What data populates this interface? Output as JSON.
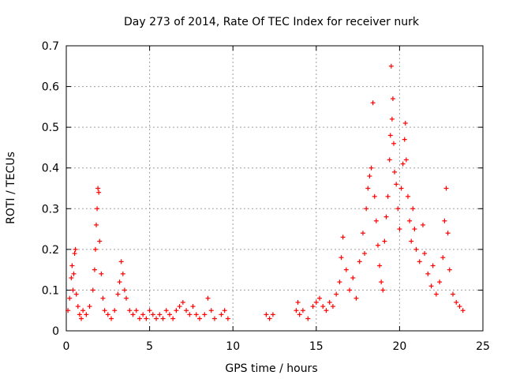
{
  "chart_data": {
    "type": "scatter",
    "title": "Day 273 of 2014, Rate Of TEC Index for receiver nurk",
    "xlabel": "GPS time / hours",
    "ylabel": "ROTI / TECUs",
    "xlim": [
      0,
      25
    ],
    "ylim": [
      0,
      0.7
    ],
    "x_ticks": [
      0,
      5,
      10,
      15,
      20,
      25
    ],
    "y_ticks": [
      0,
      0.1,
      0.2,
      0.3,
      0.4,
      0.5,
      0.6,
      0.7
    ],
    "x_tick_labels": [
      "0",
      "5",
      "10",
      "15",
      "20",
      "25"
    ],
    "y_tick_labels": [
      "0",
      "0.1",
      "0.2",
      "0.3",
      "0.4",
      "0.5",
      "0.6",
      "0.7"
    ],
    "grid": true,
    "marker": "+",
    "color": "#ff0000",
    "series": [
      {
        "points": [
          [
            0.1,
            0.05
          ],
          [
            0.2,
            0.08
          ],
          [
            0.3,
            0.13
          ],
          [
            0.35,
            0.16
          ],
          [
            0.4,
            0.1
          ],
          [
            0.45,
            0.14
          ],
          [
            0.5,
            0.19
          ],
          [
            0.55,
            0.2
          ],
          [
            0.6,
            0.09
          ],
          [
            0.7,
            0.06
          ],
          [
            0.8,
            0.04
          ],
          [
            0.9,
            0.03
          ],
          [
            1.0,
            0.05
          ],
          [
            1.2,
            0.04
          ],
          [
            1.4,
            0.06
          ],
          [
            1.6,
            0.1
          ],
          [
            1.7,
            0.15
          ],
          [
            1.75,
            0.2
          ],
          [
            1.8,
            0.26
          ],
          [
            1.85,
            0.3
          ],
          [
            1.9,
            0.35
          ],
          [
            1.95,
            0.34
          ],
          [
            2.0,
            0.22
          ],
          [
            2.1,
            0.14
          ],
          [
            2.2,
            0.08
          ],
          [
            2.3,
            0.05
          ],
          [
            2.5,
            0.04
          ],
          [
            2.7,
            0.03
          ],
          [
            2.9,
            0.05
          ],
          [
            3.1,
            0.09
          ],
          [
            3.2,
            0.12
          ],
          [
            3.3,
            0.17
          ],
          [
            3.4,
            0.14
          ],
          [
            3.5,
            0.1
          ],
          [
            3.6,
            0.08
          ],
          [
            3.8,
            0.05
          ],
          [
            4.0,
            0.04
          ],
          [
            4.2,
            0.05
          ],
          [
            4.4,
            0.03
          ],
          [
            4.6,
            0.04
          ],
          [
            4.8,
            0.03
          ],
          [
            5.0,
            0.05
          ],
          [
            5.2,
            0.04
          ],
          [
            5.4,
            0.03
          ],
          [
            5.6,
            0.04
          ],
          [
            5.8,
            0.03
          ],
          [
            6.0,
            0.05
          ],
          [
            6.2,
            0.04
          ],
          [
            6.4,
            0.03
          ],
          [
            6.6,
            0.05
          ],
          [
            6.8,
            0.06
          ],
          [
            7.0,
            0.07
          ],
          [
            7.2,
            0.05
          ],
          [
            7.4,
            0.04
          ],
          [
            7.6,
            0.06
          ],
          [
            7.8,
            0.04
          ],
          [
            8.0,
            0.03
          ],
          [
            8.3,
            0.04
          ],
          [
            8.5,
            0.08
          ],
          [
            8.7,
            0.05
          ],
          [
            8.9,
            0.03
          ],
          [
            9.3,
            0.04
          ],
          [
            9.5,
            0.05
          ],
          [
            9.7,
            0.03
          ],
          [
            12.0,
            0.04
          ],
          [
            12.2,
            0.03
          ],
          [
            12.4,
            0.04
          ],
          [
            13.8,
            0.05
          ],
          [
            13.9,
            0.07
          ],
          [
            14.0,
            0.04
          ],
          [
            14.2,
            0.05
          ],
          [
            14.5,
            0.03
          ],
          [
            14.8,
            0.06
          ],
          [
            15.0,
            0.07
          ],
          [
            15.2,
            0.08
          ],
          [
            15.4,
            0.06
          ],
          [
            15.6,
            0.05
          ],
          [
            15.8,
            0.07
          ],
          [
            16.0,
            0.06
          ],
          [
            16.2,
            0.09
          ],
          [
            16.4,
            0.12
          ],
          [
            16.5,
            0.18
          ],
          [
            16.6,
            0.23
          ],
          [
            16.8,
            0.15
          ],
          [
            17.0,
            0.1
          ],
          [
            17.2,
            0.13
          ],
          [
            17.4,
            0.08
          ],
          [
            17.6,
            0.17
          ],
          [
            17.8,
            0.24
          ],
          [
            17.9,
            0.19
          ],
          [
            18.0,
            0.3
          ],
          [
            18.1,
            0.35
          ],
          [
            18.2,
            0.38
          ],
          [
            18.3,
            0.4
          ],
          [
            18.4,
            0.56
          ],
          [
            18.5,
            0.33
          ],
          [
            18.6,
            0.27
          ],
          [
            18.7,
            0.21
          ],
          [
            18.8,
            0.16
          ],
          [
            18.9,
            0.12
          ],
          [
            19.0,
            0.1
          ],
          [
            19.1,
            0.22
          ],
          [
            19.2,
            0.28
          ],
          [
            19.3,
            0.33
          ],
          [
            19.4,
            0.42
          ],
          [
            19.45,
            0.48
          ],
          [
            19.5,
            0.65
          ],
          [
            19.55,
            0.52
          ],
          [
            19.6,
            0.57
          ],
          [
            19.65,
            0.46
          ],
          [
            19.7,
            0.39
          ],
          [
            19.8,
            0.36
          ],
          [
            19.9,
            0.3
          ],
          [
            20.0,
            0.25
          ],
          [
            20.1,
            0.35
          ],
          [
            20.2,
            0.41
          ],
          [
            20.3,
            0.47
          ],
          [
            20.35,
            0.51
          ],
          [
            20.4,
            0.42
          ],
          [
            20.5,
            0.33
          ],
          [
            20.6,
            0.27
          ],
          [
            20.7,
            0.22
          ],
          [
            20.8,
            0.3
          ],
          [
            20.9,
            0.25
          ],
          [
            21.0,
            0.2
          ],
          [
            21.2,
            0.17
          ],
          [
            21.4,
            0.26
          ],
          [
            21.5,
            0.19
          ],
          [
            21.7,
            0.14
          ],
          [
            21.9,
            0.11
          ],
          [
            22.0,
            0.16
          ],
          [
            22.2,
            0.09
          ],
          [
            22.4,
            0.12
          ],
          [
            22.6,
            0.18
          ],
          [
            22.7,
            0.27
          ],
          [
            22.8,
            0.35
          ],
          [
            22.9,
            0.24
          ],
          [
            23.0,
            0.15
          ],
          [
            23.2,
            0.09
          ],
          [
            23.4,
            0.07
          ],
          [
            23.6,
            0.06
          ],
          [
            23.8,
            0.05
          ]
        ]
      }
    ]
  }
}
